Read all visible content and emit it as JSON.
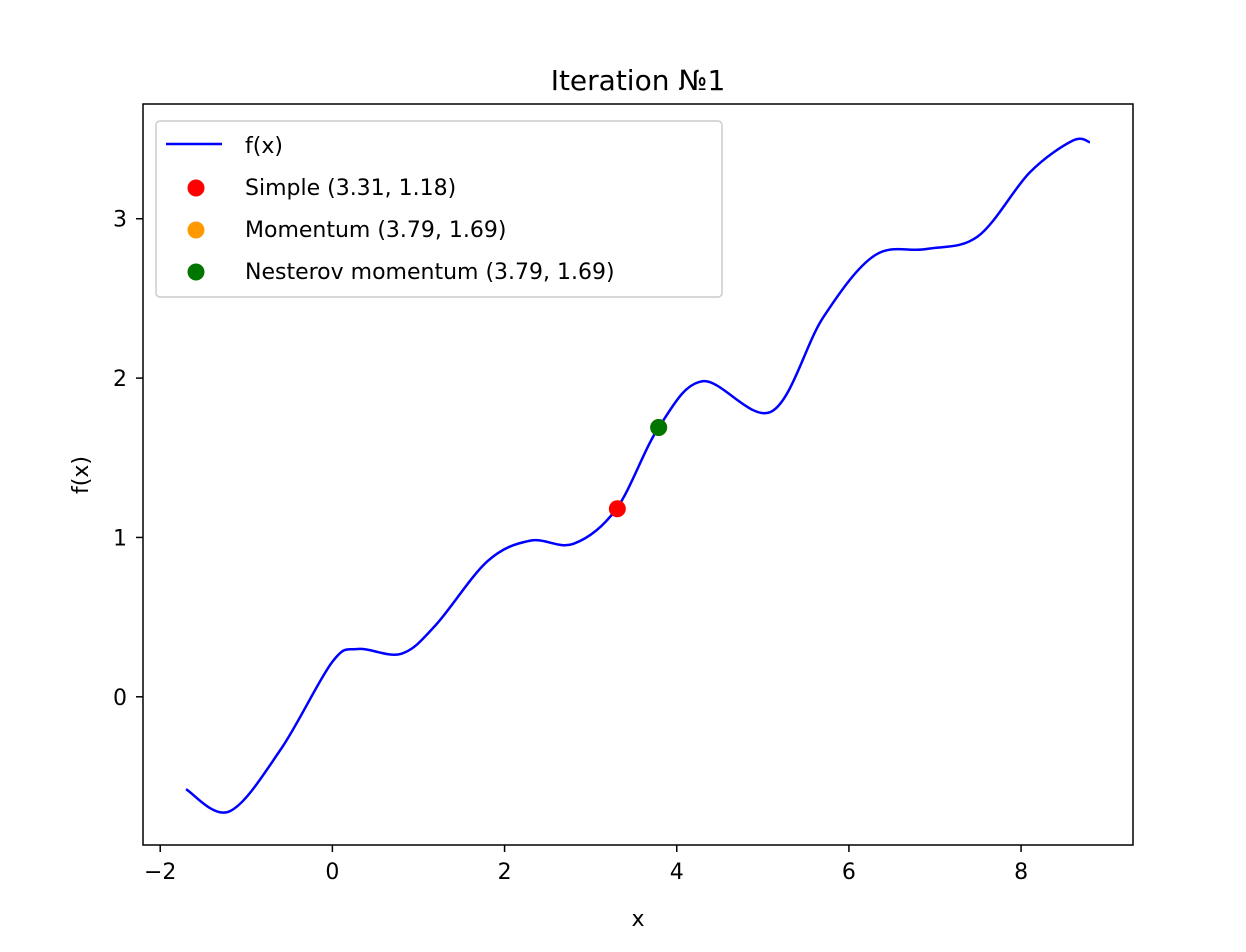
{
  "chart_data": {
    "type": "line",
    "title": "Iteration №1",
    "xlabel": "x",
    "ylabel": "f(x)",
    "xlim": [
      -2.2,
      9.3
    ],
    "ylim": [
      -0.93,
      3.72
    ],
    "xticks": [
      -2,
      0,
      2,
      4,
      6,
      8
    ],
    "xtick_labels": [
      "−2",
      "0",
      "2",
      "4",
      "6",
      "8"
    ],
    "yticks": [
      0,
      1,
      2,
      3
    ],
    "ytick_labels": [
      "0",
      "1",
      "2",
      "3"
    ],
    "grid": false,
    "legend_position": "top-left",
    "function": {
      "name": "f(x)",
      "color": "#0000ff",
      "x_range": [
        -1.7,
        8.8
      ],
      "x": [
        -1.7,
        -1.2,
        -0.6,
        0.0,
        0.3,
        0.8,
        1.2,
        1.8,
        2.3,
        2.8,
        3.3,
        3.79,
        4.3,
        5.1,
        5.7,
        6.3,
        6.9,
        7.5,
        8.1,
        8.6,
        8.8
      ],
      "y": [
        -0.58,
        -0.72,
        -0.33,
        0.22,
        0.3,
        0.27,
        0.45,
        0.85,
        0.98,
        0.96,
        1.18,
        1.69,
        1.98,
        1.79,
        2.38,
        2.77,
        2.81,
        2.89,
        3.29,
        3.49,
        3.48
      ]
    },
    "points": [
      {
        "name": "Simple (3.31, 1.18)",
        "x": 3.31,
        "y": 1.18,
        "color": "#ff0000"
      },
      {
        "name": "Momentum (3.79, 1.69)",
        "x": 3.79,
        "y": 1.69,
        "color": "#ff9900"
      },
      {
        "name": "Nesterov momentum (3.79, 1.69)",
        "x": 3.79,
        "y": 1.69,
        "color": "#007500"
      }
    ]
  }
}
